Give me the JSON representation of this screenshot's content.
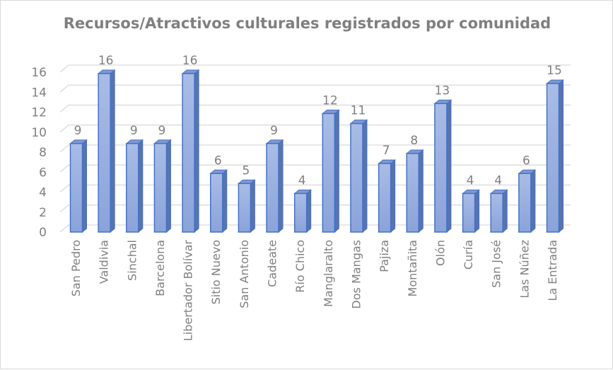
{
  "chart_data": {
    "type": "bar",
    "title": "Recursos/Atractivos culturales registrados por comunidad",
    "xlabel": "",
    "ylabel": "",
    "ylim": [
      0,
      16
    ],
    "yticks": [
      0,
      2,
      4,
      6,
      8,
      10,
      12,
      14,
      16
    ],
    "grid": true,
    "legend": "none",
    "style": "3d-column",
    "bar_color": "#8faadc",
    "bar_edge_color": "#4472c4",
    "categories": [
      "San Pedro",
      "Valdivia",
      "Sinchal",
      "Barcelona",
      "Libertador Bolívar",
      "Sitio Nuevo",
      "San Antonio",
      "Cadeate",
      "Río Chico",
      "Manglaralto",
      "Dos Mangas",
      "Pajiza",
      "Montañita",
      "Olón",
      "Curía",
      "San José",
      "Las Núñez",
      "La Entrada"
    ],
    "values": [
      9,
      16,
      9,
      9,
      16,
      6,
      5,
      9,
      4,
      12,
      11,
      7,
      8,
      13,
      4,
      4,
      6,
      15
    ]
  }
}
